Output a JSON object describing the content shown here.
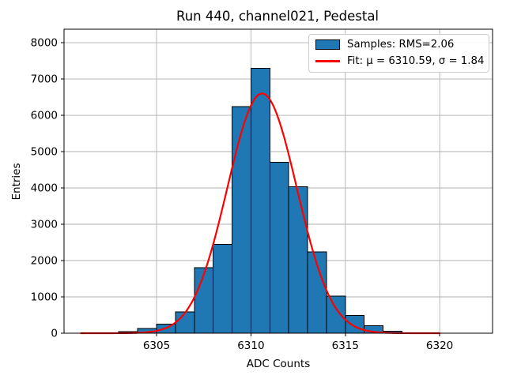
{
  "chart_data": {
    "type": "bar",
    "subtype": "histogram-with-gaussian-fit",
    "title": "Run 440, channel021, Pedestal",
    "xlabel": "ADC Counts",
    "ylabel": "Entries",
    "bin_edges": [
      6303,
      6304,
      6305,
      6306,
      6307,
      6308,
      6309,
      6310,
      6311,
      6312,
      6313,
      6314,
      6315,
      6316,
      6317,
      6318,
      6319
    ],
    "counts": [
      40,
      130,
      250,
      590,
      1800,
      2450,
      6240,
      7290,
      4710,
      4030,
      2240,
      1020,
      490,
      205,
      55,
      15
    ],
    "series": [
      {
        "name": "Samples: RMS=2.06",
        "type": "histogram",
        "rms": 2.06,
        "fill_color": "#1f77b4",
        "edge_color": "#000000"
      },
      {
        "name": "Fit: μ = 6310.59, σ = 1.84",
        "type": "gaussian",
        "mu": 6310.59,
        "sigma": 1.84,
        "amplitude": 6600,
        "x_range": [
          6301,
          6320
        ],
        "color": "#ff0000"
      }
    ],
    "xlim": [
      6300.1,
      6322.8
    ],
    "ylim": [
      0,
      8370
    ],
    "xticks": [
      6305,
      6310,
      6315,
      6320
    ],
    "yticks": [
      0,
      1000,
      2000,
      3000,
      4000,
      5000,
      6000,
      7000,
      8000
    ],
    "grid": true,
    "legend_position": "upper right",
    "legend_entries": [
      {
        "label": "Samples: RMS=2.06",
        "marker": "patch",
        "color": "#1f77b4"
      },
      {
        "label": "Fit: μ = 6310.59, σ = 1.84",
        "marker": "line",
        "color": "#ff0000"
      }
    ],
    "colors": {
      "bar_fill": "#1f77b4",
      "bar_edge": "#000000",
      "fit_line": "#ff0000",
      "grid": "#b0b0b0",
      "spine": "#000000",
      "text": "#000000",
      "background": "#ffffff"
    }
  }
}
